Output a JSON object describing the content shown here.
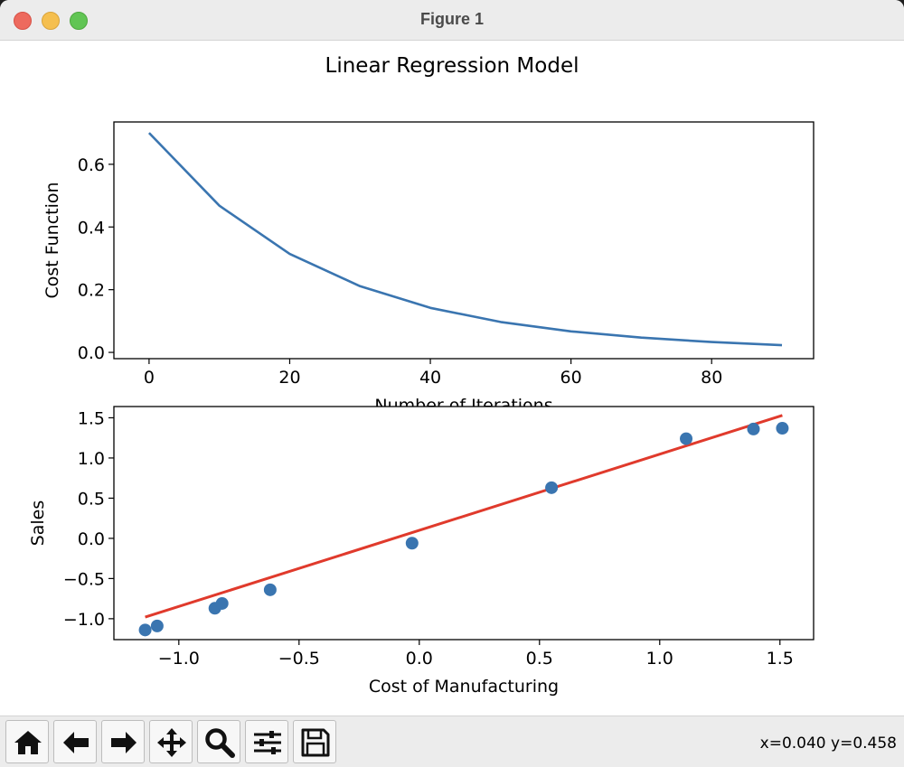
{
  "window": {
    "title": "Figure 1"
  },
  "figure": {
    "suptitle": "Linear Regression Model"
  },
  "chart_data": [
    {
      "type": "line",
      "xlabel": "Number of Iterations",
      "ylabel": "Cost Function",
      "xlim": [
        -5,
        94.5
      ],
      "ylim": [
        -0.02,
        0.735
      ],
      "xticks": [
        0,
        20,
        40,
        60,
        80
      ],
      "yticks": [
        0.0,
        0.2,
        0.4,
        0.6
      ],
      "grid": false,
      "x": [
        0,
        10,
        20,
        30,
        40,
        50,
        60,
        70,
        80,
        90
      ],
      "series": [
        {
          "values": [
            0.7,
            0.468,
            0.314,
            0.211,
            0.142,
            0.097,
            0.067,
            0.047,
            0.033,
            0.023
          ],
          "color": "#3a75b0"
        }
      ]
    },
    {
      "type": "scatter",
      "xlabel": "Cost of Manufacturing",
      "ylabel": "Sales",
      "xlim": [
        -1.27,
        1.64
      ],
      "ylim": [
        -1.26,
        1.64
      ],
      "xticks": [
        -1.0,
        -0.5,
        0.0,
        0.5,
        1.0,
        1.5
      ],
      "yticks": [
        -1.0,
        -0.5,
        0.0,
        0.5,
        1.0,
        1.5
      ],
      "grid": false,
      "points": {
        "color": "#3a75b0",
        "x": [
          -1.14,
          -1.09,
          -0.85,
          -0.82,
          -0.62,
          -0.03,
          0.55,
          1.11,
          1.39,
          1.51
        ],
        "y": [
          -1.14,
          -1.09,
          -0.87,
          -0.81,
          -0.64,
          -0.06,
          0.63,
          1.24,
          1.36,
          1.37
        ]
      },
      "fit_line": {
        "color": "#e03a2c",
        "x": [
          -1.14,
          1.51
        ],
        "y": [
          -0.98,
          1.53
        ]
      }
    }
  ],
  "toolbar": {
    "buttons": [
      {
        "name": "home-button",
        "icon": "home-icon"
      },
      {
        "name": "back-button",
        "icon": "arrow-left-icon"
      },
      {
        "name": "forward-button",
        "icon": "arrow-right-icon"
      },
      {
        "name": "pan-button",
        "icon": "move-icon"
      },
      {
        "name": "zoom-button",
        "icon": "magnifier-icon"
      },
      {
        "name": "configure-subplots-button",
        "icon": "sliders-icon"
      },
      {
        "name": "save-button",
        "icon": "floppy-disk-icon"
      }
    ],
    "coords": "x=0.040 y=0.458"
  }
}
